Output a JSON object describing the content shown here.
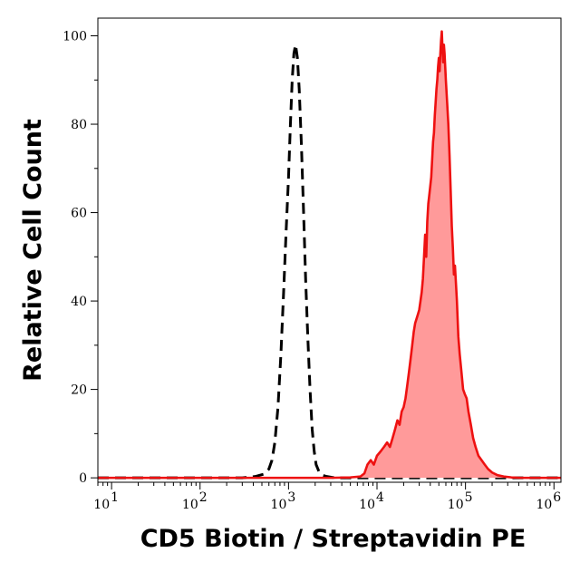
{
  "chart_data": {
    "type": "area",
    "title": "",
    "xlabel": "CD5 Biotin / Streptavidin PE",
    "ylabel": "Relative Cell Count",
    "x_scale": "log",
    "xlim": [
      7,
      1200000
    ],
    "ylim": [
      -1,
      104
    ],
    "grid": false,
    "legend": "none",
    "x_ticks": [
      {
        "value": 10,
        "base": "10",
        "exp": "1"
      },
      {
        "value": 100,
        "base": "10",
        "exp": "2"
      },
      {
        "value": 1000,
        "base": "10",
        "exp": "3"
      },
      {
        "value": 10000,
        "base": "10",
        "exp": "4"
      },
      {
        "value": 100000,
        "base": "10",
        "exp": "5"
      },
      {
        "value": 1000000,
        "base": "10",
        "exp": "6"
      }
    ],
    "y_ticks": [
      0,
      20,
      40,
      60,
      80,
      100
    ],
    "series": [
      {
        "style": "dashed",
        "color": "#000000",
        "x": [
          7,
          300,
          420,
          520,
          600,
          650,
          700,
          760,
          820,
          880,
          940,
          1000,
          1050,
          1100,
          1150,
          1200,
          1260,
          1320,
          1400,
          1480,
          1560,
          1650,
          1750,
          1850,
          1950,
          2050,
          2200,
          2400,
          2700,
          3100,
          3600,
          4500,
          6000,
          20000,
          60000,
          200000,
          1200000
        ],
        "y": [
          0,
          0,
          0.3,
          0.8,
          2,
          4,
          8,
          16,
          28,
          42,
          56,
          68,
          80,
          90,
          96,
          98,
          95,
          88,
          75,
          60,
          45,
          32,
          20,
          11,
          6,
          3,
          1.5,
          0.6,
          0.3,
          0.1,
          0,
          0,
          0,
          0,
          0,
          0,
          0
        ]
      },
      {
        "style": "filled",
        "color": "#ee1111",
        "fill": "#ff9a9a",
        "x": [
          7,
          3000,
          5000,
          6500,
          7200,
          7800,
          8500,
          9200,
          10000,
          11000,
          12000,
          13000,
          14000,
          15000,
          16000,
          17000,
          18000,
          19000,
          20000,
          21000,
          22000,
          23000,
          24000,
          25000,
          26000,
          27000,
          28000,
          29000,
          30000,
          31000,
          32000,
          33000,
          34000,
          35000,
          36000,
          37000,
          38000,
          39000,
          40000,
          41000,
          42000,
          43000,
          44000,
          45000,
          46000,
          47000,
          48000,
          49000,
          50000,
          51000,
          52000,
          53000,
          54000,
          55000,
          56000,
          57000,
          58000,
          59000,
          60000,
          62000,
          64000,
          66000,
          68000,
          70000,
          72000,
          74000,
          76000,
          78000,
          80000,
          83000,
          86000,
          90000,
          94000,
          98000,
          103000,
          108000,
          115000,
          122000,
          130000,
          140000,
          152000,
          165000,
          180000,
          200000,
          230000,
          270000,
          330000,
          420000,
          600000,
          1200000
        ],
        "y": [
          0,
          0,
          0.1,
          0.3,
          1,
          3,
          4,
          3,
          5,
          6,
          7,
          8,
          7,
          9,
          11,
          13,
          12,
          15,
          16,
          18,
          21,
          24,
          27,
          30,
          33,
          35,
          36,
          37,
          38,
          40,
          42,
          45,
          50,
          55,
          50,
          58,
          62,
          64,
          66,
          68,
          72,
          76,
          78,
          82,
          85,
          88,
          90,
          93,
          95,
          92,
          96,
          99,
          101,
          97,
          94,
          98,
          96,
          93,
          90,
          85,
          80,
          73,
          65,
          57,
          52,
          46,
          48,
          44,
          40,
          32,
          28,
          24,
          20,
          19,
          18,
          15,
          12,
          9,
          7,
          5,
          4,
          3,
          2,
          1.2,
          0.6,
          0.3,
          0.1,
          0,
          0,
          0
        ]
      }
    ]
  }
}
